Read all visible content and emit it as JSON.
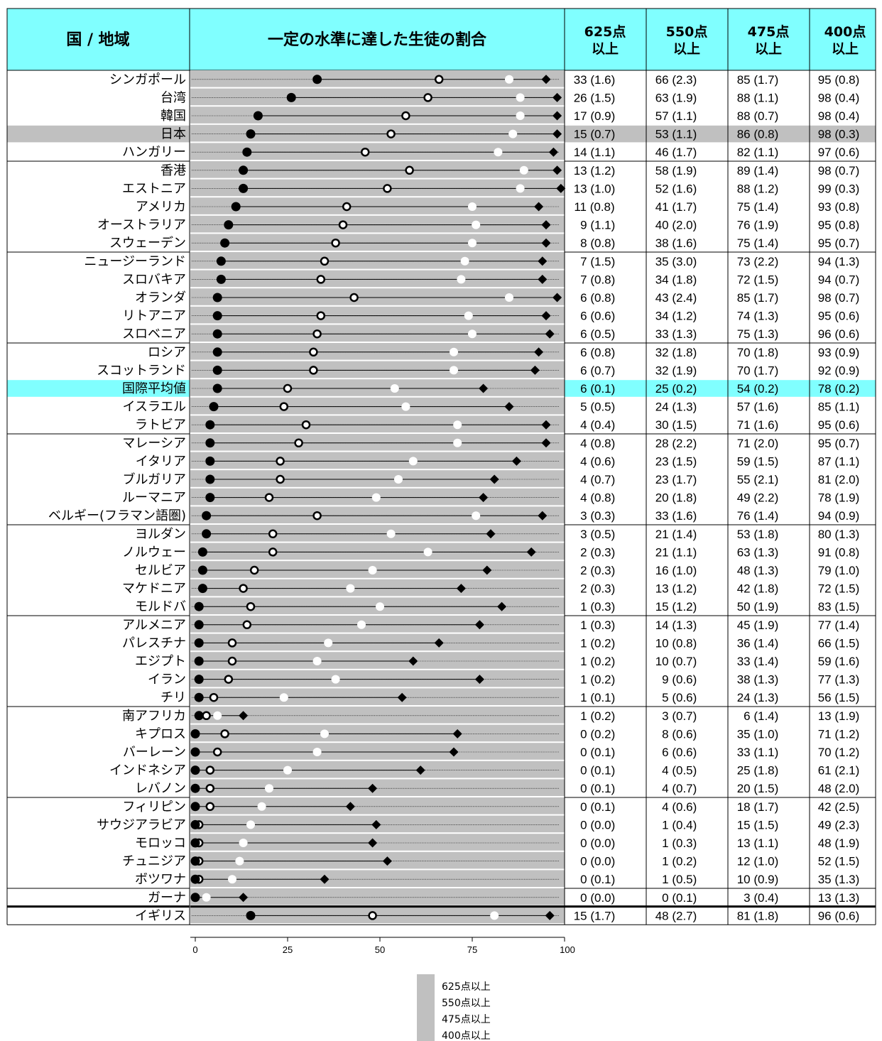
{
  "header": {
    "country": "国 / 地域",
    "chart": "一定の水準に達した生徒の割合",
    "col625": [
      "625点",
      "以上"
    ],
    "col550": [
      "550点",
      "以上"
    ],
    "col475": [
      "475点",
      "以上"
    ],
    "col400": [
      "400点",
      "以上"
    ]
  },
  "colors": {
    "header_bg": "#80ffff",
    "plot_bg": "#c0c0c0",
    "highlight_japan": "#c0c0c0",
    "highlight_average": "#80ffff",
    "separator": "#ffffff"
  },
  "legend": [
    "625点以上",
    "550点以上",
    "475点以上",
    "400点以上"
  ],
  "chart_data": {
    "type": "scatter",
    "xlim": [
      0,
      100
    ],
    "xticks": [
      "0",
      "25",
      "50",
      "75",
      "100"
    ],
    "series": [
      {
        "name": "625点以上",
        "marker": "filled-circle"
      },
      {
        "name": "550点以上",
        "marker": "ring-circle"
      },
      {
        "name": "475点以上",
        "marker": "white-circle"
      },
      {
        "name": "400点以上",
        "marker": "diamond"
      }
    ],
    "rows": [
      {
        "name": "シンガポール",
        "v": [
          33,
          66,
          85,
          95
        ],
        "se": [
          "1.6",
          "2.3",
          "1.7",
          "0.8"
        ]
      },
      {
        "name": "台湾",
        "v": [
          26,
          63,
          88,
          98
        ],
        "se": [
          "1.5",
          "1.9",
          "1.1",
          "0.4"
        ]
      },
      {
        "name": "韓国",
        "v": [
          17,
          57,
          88,
          98
        ],
        "se": [
          "0.9",
          "1.1",
          "0.7",
          "0.4"
        ]
      },
      {
        "name": "日本",
        "v": [
          15,
          53,
          86,
          98
        ],
        "se": [
          "0.7",
          "1.1",
          "0.8",
          "0.3"
        ],
        "highlight": "japan"
      },
      {
        "name": "ハンガリー",
        "v": [
          14,
          46,
          82,
          97
        ],
        "se": [
          "1.1",
          "1.7",
          "1.1",
          "0.6"
        ]
      },
      {
        "name": "香港",
        "v": [
          13,
          58,
          89,
          98
        ],
        "se": [
          "1.2",
          "1.9",
          "1.4",
          "0.7"
        ]
      },
      {
        "name": "エストニア",
        "v": [
          13,
          52,
          88,
          99
        ],
        "se": [
          "1.0",
          "1.6",
          "1.2",
          "0.3"
        ]
      },
      {
        "name": "アメリカ",
        "v": [
          11,
          41,
          75,
          93
        ],
        "se": [
          "0.8",
          "1.7",
          "1.4",
          "0.8"
        ]
      },
      {
        "name": "オーストラリア",
        "v": [
          9,
          40,
          76,
          95
        ],
        "se": [
          "1.1",
          "2.0",
          "1.9",
          "0.8"
        ]
      },
      {
        "name": "スウェーデン",
        "v": [
          8,
          38,
          75,
          95
        ],
        "se": [
          "0.8",
          "1.6",
          "1.4",
          "0.7"
        ]
      },
      {
        "name": "ニュージーランド",
        "v": [
          7,
          35,
          73,
          94
        ],
        "se": [
          "1.5",
          "3.0",
          "2.2",
          "1.3"
        ]
      },
      {
        "name": "スロバキア",
        "v": [
          7,
          34,
          72,
          94
        ],
        "se": [
          "0.8",
          "1.8",
          "1.5",
          "0.7"
        ]
      },
      {
        "name": "オランダ",
        "v": [
          6,
          43,
          85,
          98
        ],
        "se": [
          "0.8",
          "2.4",
          "1.7",
          "0.7"
        ]
      },
      {
        "name": "リトアニア",
        "v": [
          6,
          34,
          74,
          95
        ],
        "se": [
          "0.6",
          "1.2",
          "1.3",
          "0.6"
        ]
      },
      {
        "name": "スロベニア",
        "v": [
          6,
          33,
          75,
          96
        ],
        "se": [
          "0.5",
          "1.3",
          "1.3",
          "0.6"
        ]
      },
      {
        "name": "ロシア",
        "v": [
          6,
          32,
          70,
          93
        ],
        "se": [
          "0.8",
          "1.8",
          "1.8",
          "0.9"
        ]
      },
      {
        "name": "スコットランド",
        "v": [
          6,
          32,
          70,
          92
        ],
        "se": [
          "0.7",
          "1.9",
          "1.7",
          "0.9"
        ]
      },
      {
        "name": "国際平均値",
        "v": [
          6,
          25,
          54,
          78
        ],
        "se": [
          "0.1",
          "0.2",
          "0.2",
          "0.2"
        ],
        "highlight": "average"
      },
      {
        "name": "イスラエル",
        "v": [
          5,
          24,
          57,
          85
        ],
        "se": [
          "0.5",
          "1.3",
          "1.6",
          "1.1"
        ]
      },
      {
        "name": "ラトビア",
        "v": [
          4,
          30,
          71,
          95
        ],
        "se": [
          "0.4",
          "1.5",
          "1.6",
          "0.6"
        ]
      },
      {
        "name": "マレーシア",
        "v": [
          4,
          28,
          71,
          95
        ],
        "se": [
          "0.8",
          "2.2",
          "2.0",
          "0.7"
        ]
      },
      {
        "name": "イタリア",
        "v": [
          4,
          23,
          59,
          87
        ],
        "se": [
          "0.6",
          "1.5",
          "1.5",
          "1.1"
        ]
      },
      {
        "name": "ブルガリア",
        "v": [
          4,
          23,
          55,
          81
        ],
        "se": [
          "0.7",
          "1.7",
          "2.1",
          "2.0"
        ]
      },
      {
        "name": "ルーマニア",
        "v": [
          4,
          20,
          49,
          78
        ],
        "se": [
          "0.8",
          "1.8",
          "2.2",
          "1.9"
        ]
      },
      {
        "name": "ベルギー(フラマン語圏)",
        "v": [
          3,
          33,
          76,
          94
        ],
        "se": [
          "0.3",
          "1.6",
          "1.4",
          "0.9"
        ]
      },
      {
        "name": "ヨルダン",
        "v": [
          3,
          21,
          53,
          80
        ],
        "se": [
          "0.5",
          "1.4",
          "1.8",
          "1.3"
        ]
      },
      {
        "name": "ノルウェー",
        "v": [
          2,
          21,
          63,
          91
        ],
        "se": [
          "0.3",
          "1.1",
          "1.3",
          "0.8"
        ]
      },
      {
        "name": "セルビア",
        "v": [
          2,
          16,
          48,
          79
        ],
        "se": [
          "0.3",
          "1.0",
          "1.3",
          "1.0"
        ]
      },
      {
        "name": "マケドニア",
        "v": [
          2,
          13,
          42,
          72
        ],
        "se": [
          "0.3",
          "1.2",
          "1.8",
          "1.5"
        ]
      },
      {
        "name": "モルドバ",
        "v": [
          1,
          15,
          50,
          83
        ],
        "se": [
          "0.3",
          "1.2",
          "1.9",
          "1.5"
        ]
      },
      {
        "name": "アルメニア",
        "v": [
          1,
          14,
          45,
          77
        ],
        "se": [
          "0.3",
          "1.3",
          "1.9",
          "1.4"
        ]
      },
      {
        "name": "パレスチナ",
        "v": [
          1,
          10,
          36,
          66
        ],
        "se": [
          "0.2",
          "0.8",
          "1.4",
          "1.5"
        ]
      },
      {
        "name": "エジプト",
        "v": [
          1,
          10,
          33,
          59
        ],
        "se": [
          "0.2",
          "0.7",
          "1.4",
          "1.6"
        ]
      },
      {
        "name": "イラン",
        "v": [
          1,
          9,
          38,
          77
        ],
        "se": [
          "0.2",
          "0.6",
          "1.3",
          "1.3"
        ]
      },
      {
        "name": "チリ",
        "v": [
          1,
          5,
          24,
          56
        ],
        "se": [
          "0.1",
          "0.6",
          "1.3",
          "1.5"
        ]
      },
      {
        "name": "南アフリカ",
        "v": [
          1,
          3,
          6,
          13
        ],
        "se": [
          "0.2",
          "0.7",
          "1.4",
          "1.9"
        ]
      },
      {
        "name": "キプロス",
        "v": [
          0,
          8,
          35,
          71
        ],
        "se": [
          "0.2",
          "0.6",
          "1.0",
          "1.2"
        ]
      },
      {
        "name": "バーレーン",
        "v": [
          0,
          6,
          33,
          70
        ],
        "se": [
          "0.1",
          "0.6",
          "1.1",
          "1.2"
        ]
      },
      {
        "name": "インドネシア",
        "v": [
          0,
          4,
          25,
          61
        ],
        "se": [
          "0.1",
          "0.5",
          "1.8",
          "2.1"
        ]
      },
      {
        "name": "レバノン",
        "v": [
          0,
          4,
          20,
          48
        ],
        "se": [
          "0.1",
          "0.7",
          "1.5",
          "2.0"
        ]
      },
      {
        "name": "フィリピン",
        "v": [
          0,
          4,
          18,
          42
        ],
        "se": [
          "0.1",
          "0.6",
          "1.7",
          "2.5"
        ]
      },
      {
        "name": "サウジアラビア",
        "v": [
          0,
          1,
          15,
          49
        ],
        "se": [
          "0.0",
          "0.4",
          "1.5",
          "2.3"
        ]
      },
      {
        "name": "モロッコ",
        "v": [
          0,
          1,
          13,
          48
        ],
        "se": [
          "0.0",
          "0.3",
          "1.1",
          "1.9"
        ]
      },
      {
        "name": "チュニジア",
        "v": [
          0,
          1,
          12,
          52
        ],
        "se": [
          "0.0",
          "0.2",
          "1.0",
          "1.5"
        ]
      },
      {
        "name": "ボツワナ",
        "v": [
          0,
          1,
          10,
          35
        ],
        "se": [
          "0.1",
          "0.5",
          "0.9",
          "1.3"
        ]
      },
      {
        "name": "ガーナ",
        "v": [
          0,
          0,
          3,
          13
        ],
        "se": [
          "0.0",
          "0.1",
          "0.4",
          "1.3"
        ]
      },
      {
        "name": "イギリス",
        "v": [
          15,
          48,
          81,
          96
        ],
        "se": [
          "1.7",
          "2.7",
          "1.8",
          "0.6"
        ]
      }
    ]
  }
}
